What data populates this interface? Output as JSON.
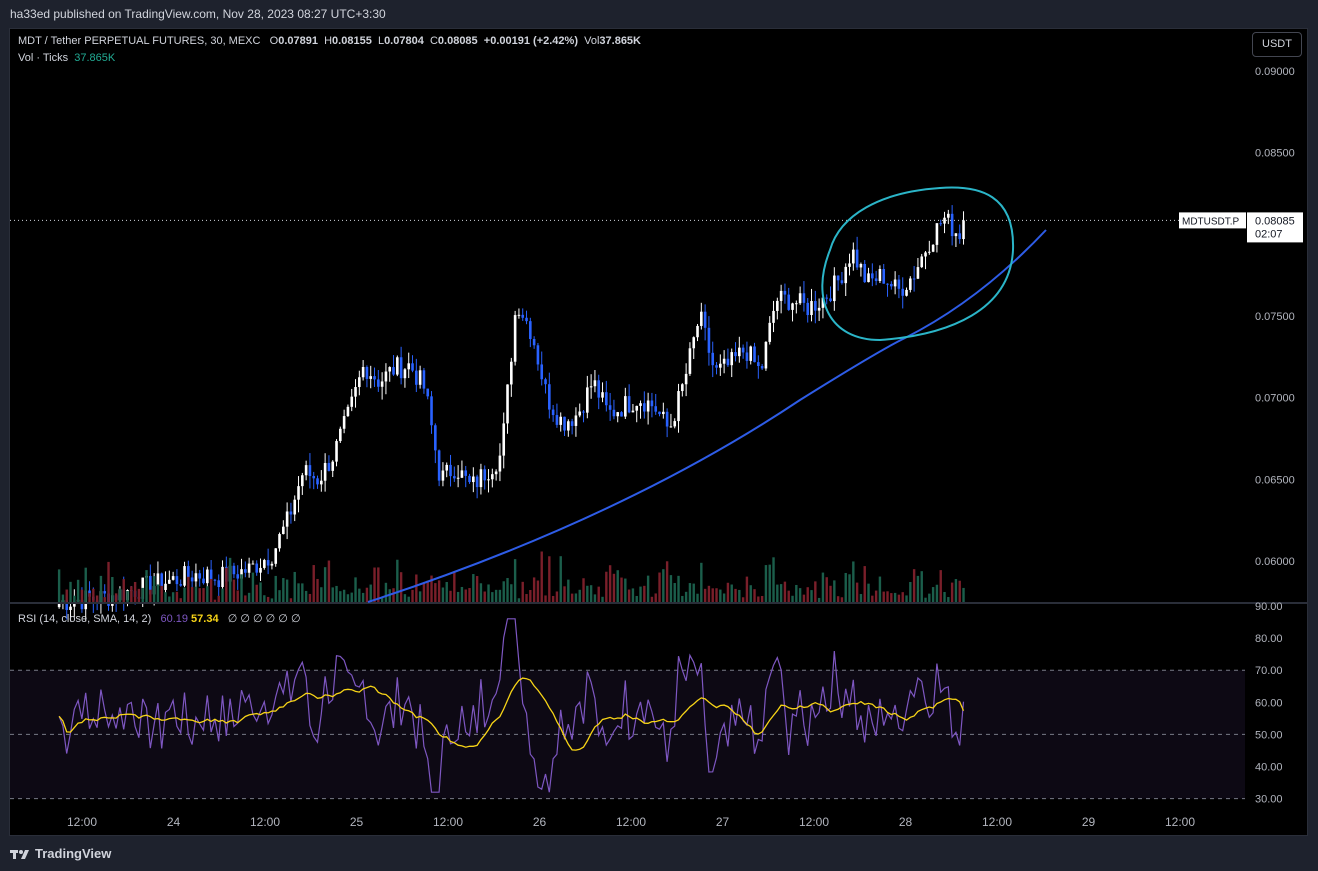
{
  "publish_info": "ha33ed published on TradingView.com, Nov 28, 2023 08:27 UTC+3:30",
  "footer_brand": "TradingView",
  "currency_button": "USDT",
  "legend": {
    "symbol": "MDT / Tether PERPETUAL FUTURES, 30, MEXC",
    "o_label": "O",
    "o_value": "0.07891",
    "h_label": "H",
    "h_value": "0.08155",
    "l_label": "L",
    "l_value": "0.07804",
    "c_label": "C",
    "c_value": "0.08085",
    "change": "+0.00191 (+2.42%)",
    "vol_label": "Vol",
    "vol_value": "37.865K",
    "vol_ticks_label": "Vol · Ticks",
    "vol_ticks_value": "37.865K"
  },
  "rsi_legend": {
    "name": "RSI (14, close, SMA, 14, 2)",
    "rsi_value": "60.19",
    "sma_value": "57.34",
    "placeholders": "∅ ∅ ∅ ∅ ∅ ∅"
  },
  "price_tag": {
    "symbol": "MDTUSDT.P",
    "price": "0.08085",
    "countdown": "02:07"
  },
  "colors": {
    "up": "#ffffff",
    "down": "#2962ff",
    "vol_up": "#1b5e4b",
    "vol_down": "#7a1f2a",
    "rsi": "#7e57c2",
    "rsi_ma": "#f7d417",
    "trend": "#2e5ce6",
    "circle": "#2bb5c8"
  },
  "chart_data": [
    {
      "type": "candlestick",
      "title": "MDT / Tether PERPETUAL FUTURES, 30, MEXC",
      "y_ticks": [
        "0.09000",
        "0.08500",
        "0.07500",
        "0.07000",
        "0.06500",
        "0.06000"
      ],
      "x_ticks": [
        "12:00",
        "24",
        "12:00",
        "25",
        "12:00",
        "26",
        "12:00",
        "27",
        "12:00",
        "28",
        "12:00",
        "29",
        "12:00"
      ],
      "ylim": [
        0.0575,
        0.0925
      ],
      "last_price": 0.08085,
      "path_points": [
        [
          "23 09:00",
          0.0575
        ],
        [
          "23 15:00",
          0.0578
        ],
        [
          "23 21:00",
          0.0585
        ],
        [
          "24 03:00",
          0.0592
        ],
        [
          "24 06:00",
          0.059
        ],
        [
          "24 10:00",
          0.0595
        ],
        [
          "24 13:00",
          0.0605
        ],
        [
          "24 15:00",
          0.0625
        ],
        [
          "24 17:00",
          0.0655
        ],
        [
          "24 19:00",
          0.065
        ],
        [
          "24 21:00",
          0.0665
        ],
        [
          "24 23:00",
          0.069
        ],
        [
          "25 01:00",
          0.072
        ],
        [
          "25 03:00",
          0.071
        ],
        [
          "25 05:00",
          0.0718
        ],
        [
          "25 07:00",
          0.072
        ],
        [
          "25 09:00",
          0.0705
        ],
        [
          "25 11:00",
          0.065
        ],
        [
          "25 13:00",
          0.0658
        ],
        [
          "25 15:00",
          0.0645
        ],
        [
          "25 17:00",
          0.0655
        ],
        [
          "25 19:00",
          0.0665
        ],
        [
          "25 21:00",
          0.076
        ],
        [
          "25 23:00",
          0.074
        ],
        [
          "26 01:00",
          0.07
        ],
        [
          "26 03:00",
          0.0685
        ],
        [
          "26 05:00",
          0.069
        ],
        [
          "26 07:00",
          0.071
        ],
        [
          "26 09:00",
          0.069
        ],
        [
          "26 11:00",
          0.0695
        ],
        [
          "26 13:00",
          0.07
        ],
        [
          "26 15:00",
          0.0695
        ],
        [
          "26 17:00",
          0.068
        ],
        [
          "26 19:00",
          0.071
        ],
        [
          "26 21:00",
          0.075
        ],
        [
          "26 23:00",
          0.0715
        ],
        [
          "27 01:00",
          0.072
        ],
        [
          "27 03:00",
          0.073
        ],
        [
          "27 05:00",
          0.0715
        ],
        [
          "27 07:00",
          0.076
        ],
        [
          "27 09:00",
          0.076
        ],
        [
          "27 11:00",
          0.0755
        ],
        [
          "27 13:00",
          0.076
        ],
        [
          "27 15:00",
          0.077
        ],
        [
          "27 17:00",
          0.079
        ],
        [
          "27 19:00",
          0.077
        ],
        [
          "27 21:00",
          0.0775
        ],
        [
          "27 23:00",
          0.0765
        ],
        [
          "28 01:00",
          0.0775
        ],
        [
          "28 03:00",
          0.0795
        ],
        [
          "28 05:00",
          0.081
        ],
        [
          "28 07:00",
          0.08
        ],
        [
          "28 08:00",
          0.08085
        ]
      ],
      "volume_note": "volume histogram at bottom of price pane",
      "annotations": [
        "blue curved trendline",
        "cyan ellipse around recent highs"
      ]
    },
    {
      "type": "line",
      "title": "RSI (14, close, SMA, 14, 2)",
      "y_ticks": [
        "90.00",
        "80.00",
        "70.00",
        "60.00",
        "50.00",
        "40.00",
        "30.00"
      ],
      "ylim": [
        28,
        90
      ],
      "bands": [
        30,
        50,
        70
      ],
      "series": [
        {
          "name": "RSI",
          "last": 60.19
        },
        {
          "name": "SMA",
          "last": 57.34
        }
      ]
    }
  ]
}
